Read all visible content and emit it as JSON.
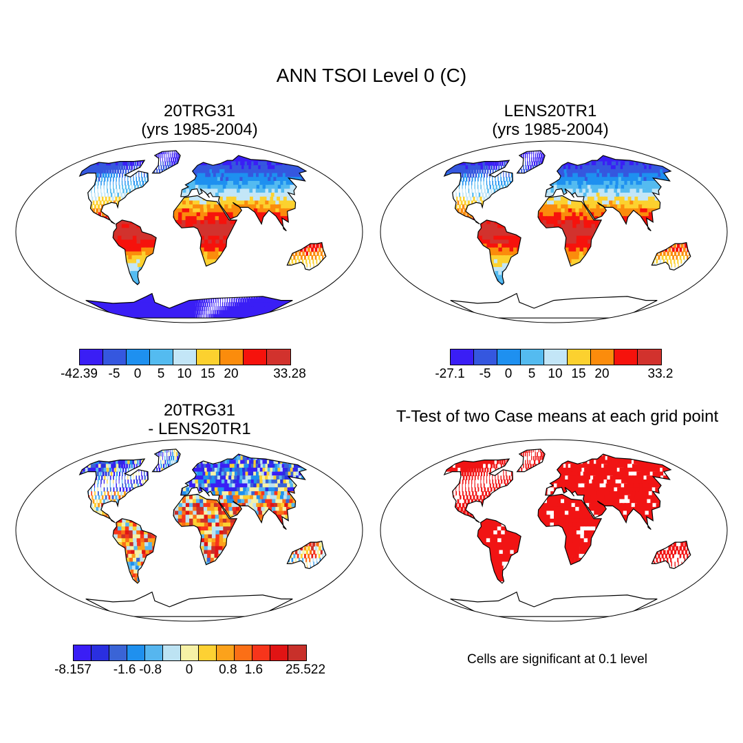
{
  "title": "ANN TSOI Level 0 (C)",
  "panels": [
    {
      "title_line1": "20TRG31",
      "title_line2": "(yrs 1985-2004)"
    },
    {
      "title_line1": "LENS20TR1",
      "title_line2": "(yrs 1985-2004)"
    },
    {
      "title_line1": "20TRG31",
      "title_line2": "- LENS20TR1"
    },
    {
      "title_line1": "T-Test of two Case means at each grid point",
      "title_line2": ""
    }
  ],
  "colorbars": [
    {
      "colors": [
        "#3a1ef5",
        "#3557df",
        "#1e90f0",
        "#54bbf0",
        "#c3e6f7",
        "#fcd12f",
        "#fb8c0c",
        "#f6120c",
        "#d2322d"
      ],
      "labels": [
        "-42.39",
        "-5",
        "0",
        "5",
        "10",
        "15",
        "20",
        "33.28"
      ],
      "label_edges": [
        0,
        1.5,
        2.5,
        3.5,
        4.5,
        5.5,
        6.5,
        9
      ]
    },
    {
      "colors": [
        "#3a1ef5",
        "#3557df",
        "#1e90f0",
        "#54bbf0",
        "#c3e6f7",
        "#fcd12f",
        "#fb8c0c",
        "#f6120c",
        "#d2322d"
      ],
      "labels": [
        "-27.1",
        "-5",
        "0",
        "5",
        "10",
        "15",
        "20",
        "33.2"
      ],
      "label_edges": [
        0,
        1.5,
        2.5,
        3.5,
        4.5,
        5.5,
        6.5,
        9
      ]
    },
    {
      "colors": [
        "#3a1ef5",
        "#2a2fe0",
        "#3a64d6",
        "#1f90ee",
        "#56b6ef",
        "#bde3f3",
        "#f6f1a6",
        "#fdd133",
        "#fca21b",
        "#fb6f16",
        "#f7351b",
        "#e01414",
        "#c8302a"
      ],
      "labels": [
        "-8.157",
        "-1.6",
        "-0.8",
        "0",
        "0.8",
        "1.6",
        "25.522"
      ],
      "label_edges": [
        0,
        2,
        3,
        4.5,
        6,
        7,
        9
      ]
    }
  ],
  "significance_note": "Cells are significant at 0.1 level",
  "significance_color": "#f11414",
  "chart_data": {
    "type": "heatmap",
    "variable": "ANN TSOI Level 0 (C)",
    "panels": [
      {
        "case": "20TRG31",
        "years": "1985-2004",
        "min": -42.39,
        "max": 33.28,
        "levels": [
          -5,
          0,
          5,
          10,
          15,
          20
        ]
      },
      {
        "case": "LENS20TR1",
        "years": "1985-2004",
        "min": -27.1,
        "max": 33.2,
        "levels": [
          -5,
          0,
          5,
          10,
          15,
          20
        ]
      },
      {
        "case": "20TRG31 - LENS20TR1",
        "min": -8.157,
        "max": 25.522,
        "levels": [
          -1.6,
          -0.8,
          0,
          0.8,
          1.6
        ]
      },
      {
        "case": "T-Test of two Case means at each grid point",
        "significance_level": 0.1
      }
    ]
  }
}
